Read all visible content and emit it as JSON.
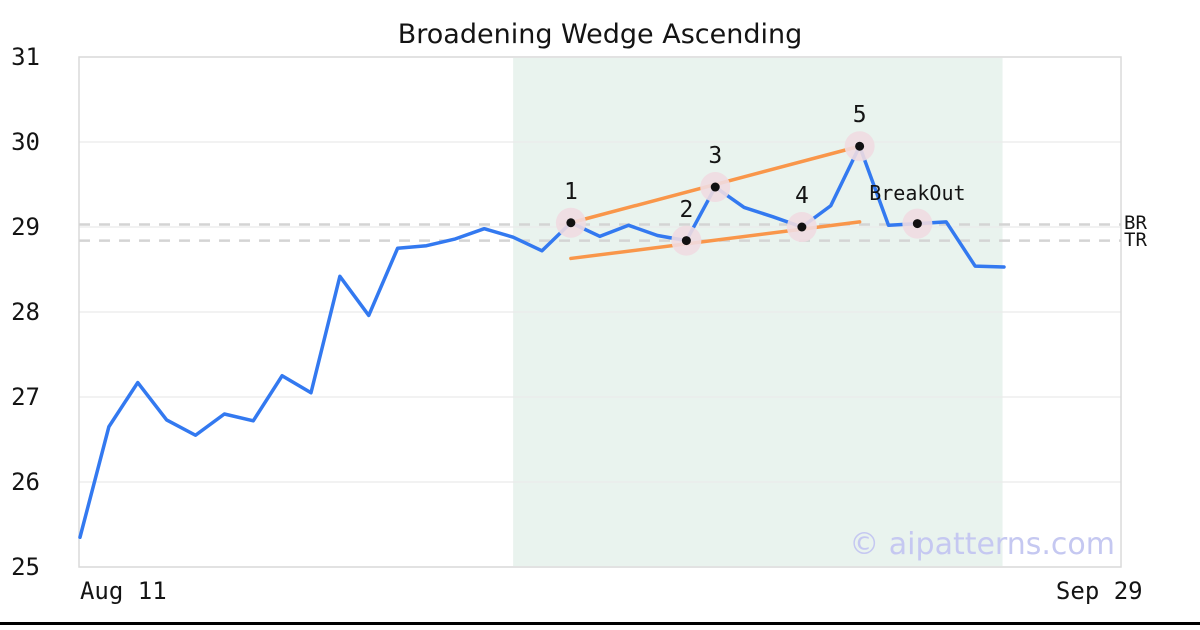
{
  "title": "Broadening Wedge Ascending",
  "watermark": "© aipatterns.com",
  "chart_data": {
    "type": "line",
    "title": "Broadening Wedge Ascending",
    "xlabel": "",
    "ylabel": "",
    "ylim": [
      25,
      31
    ],
    "grid": true,
    "legend": false,
    "yticks": [
      31,
      30,
      29,
      28,
      27,
      26,
      25
    ],
    "xticks": [
      {
        "label": "Aug 11",
        "index": 1.5
      },
      {
        "label": "Sep 29",
        "index": 35.3
      }
    ],
    "series": [
      {
        "name": "price",
        "values": [
          25.35,
          26.65,
          27.17,
          26.73,
          26.55,
          26.8,
          26.72,
          27.25,
          27.05,
          28.42,
          27.96,
          28.75,
          28.78,
          28.86,
          28.98,
          28.88,
          28.72,
          29.05,
          28.89,
          29.02,
          28.9,
          28.84,
          29.47,
          29.23,
          29.12,
          29.0,
          29.25,
          29.95,
          29.02,
          29.04,
          29.06,
          28.54,
          28.53
        ]
      }
    ],
    "pattern_points": [
      {
        "label": "1",
        "index": 17,
        "value": 29.05
      },
      {
        "label": "2",
        "index": 21,
        "value": 28.84
      },
      {
        "label": "3",
        "index": 22,
        "value": 29.47
      },
      {
        "label": "4",
        "index": 25,
        "value": 29.0
      },
      {
        "label": "5",
        "index": 27,
        "value": 29.95
      },
      {
        "label": "BreakOut",
        "index": 29,
        "value": 29.04
      }
    ],
    "trendlines": [
      {
        "name": "upper",
        "from": {
          "index": 17,
          "value": 29.05
        },
        "to": {
          "index": 27,
          "value": 29.95
        }
      },
      {
        "name": "lower",
        "from": {
          "index": 17,
          "value": 28.63
        },
        "to": {
          "index": 27,
          "value": 29.06
        }
      }
    ],
    "levels": [
      {
        "label": "BR",
        "value": 29.03
      },
      {
        "label": "TR",
        "value": 28.84
      }
    ],
    "shaded_region": {
      "from_index": 15,
      "to_index": 31.95
    },
    "colors": {
      "line": "#3379f0",
      "trendline": "#f9964a",
      "marker_dot": "#111111",
      "marker_halo": "#efdbe1",
      "level_dash": "#d4d4d4",
      "shaded_region": "#e9f3ee",
      "grid": "#eaeaea",
      "frame": "#dadada",
      "watermark": "#c5c8f1",
      "bottom_rule": "#000000"
    }
  }
}
